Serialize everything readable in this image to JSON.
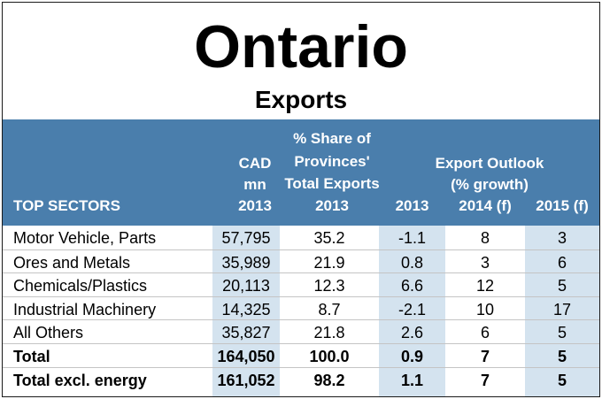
{
  "title": "Ontario",
  "subtitle": "Exports",
  "headers": {
    "top_sectors": "TOP SECTORS",
    "cad": [
      "CAD",
      "mn",
      "2013"
    ],
    "share": [
      "% Share of",
      "Provinces'",
      "Total Exports",
      "2013"
    ],
    "outlook": [
      "Export Outlook",
      "(% growth)"
    ],
    "y2013": "2013",
    "y2014": "2014 (f)",
    "y2015": "2015 (f)"
  },
  "rows": [
    {
      "sector": "Motor Vehicle, Parts",
      "cad": "57,795",
      "share": "35.2",
      "g2013": "-1.1",
      "g2014": "8",
      "g2015": "3"
    },
    {
      "sector": "Ores and Metals",
      "cad": "35,989",
      "share": "21.9",
      "g2013": "0.8",
      "g2014": "3",
      "g2015": "6"
    },
    {
      "sector": "Chemicals/Plastics",
      "cad": "20,113",
      "share": "12.3",
      "g2013": "6.6",
      "g2014": "12",
      "g2015": "5"
    },
    {
      "sector": "Industrial Machinery",
      "cad": "14,325",
      "share": "8.7",
      "g2013": "-2.1",
      "g2014": "10",
      "g2015": "17"
    },
    {
      "sector": "All Others",
      "cad": "35,827",
      "share": "21.8",
      "g2013": "2.6",
      "g2014": "6",
      "g2015": "5"
    },
    {
      "sector": "Total",
      "cad": "164,050",
      "share": "100.0",
      "g2013": "0.9",
      "g2014": "7",
      "g2015": "5"
    },
    {
      "sector": "Total excl. energy",
      "cad": "161,052",
      "share": "98.2",
      "g2013": "1.1",
      "g2014": "7",
      "g2015": "5"
    }
  ],
  "colors": {
    "header_bg": "#4a7eac",
    "shaded_column": "#d4e3ef",
    "header_text": "#ffffff"
  },
  "chart_data": {
    "type": "table",
    "title": "Ontario",
    "subtitle": "Exports",
    "columns": [
      "TOP SECTORS",
      "CAD mn 2013",
      "% Share of Provinces' Total Exports 2013",
      "2013",
      "2014 (f)",
      "2015 (f)"
    ],
    "column_group": "Export Outlook (% growth)",
    "rows": [
      [
        "Motor Vehicle, Parts",
        57795,
        35.2,
        -1.1,
        8,
        3
      ],
      [
        "Ores and Metals",
        35989,
        21.9,
        0.8,
        3,
        6
      ],
      [
        "Chemicals/Plastics",
        20113,
        12.3,
        6.6,
        12,
        5
      ],
      [
        "Industrial Machinery",
        14325,
        8.7,
        -2.1,
        10,
        17
      ],
      [
        "All Others",
        35827,
        21.8,
        2.6,
        6,
        5
      ],
      [
        "Total",
        164050,
        100.0,
        0.9,
        7,
        5
      ],
      [
        "Total excl. energy",
        161052,
        98.2,
        1.1,
        7,
        5
      ]
    ]
  }
}
